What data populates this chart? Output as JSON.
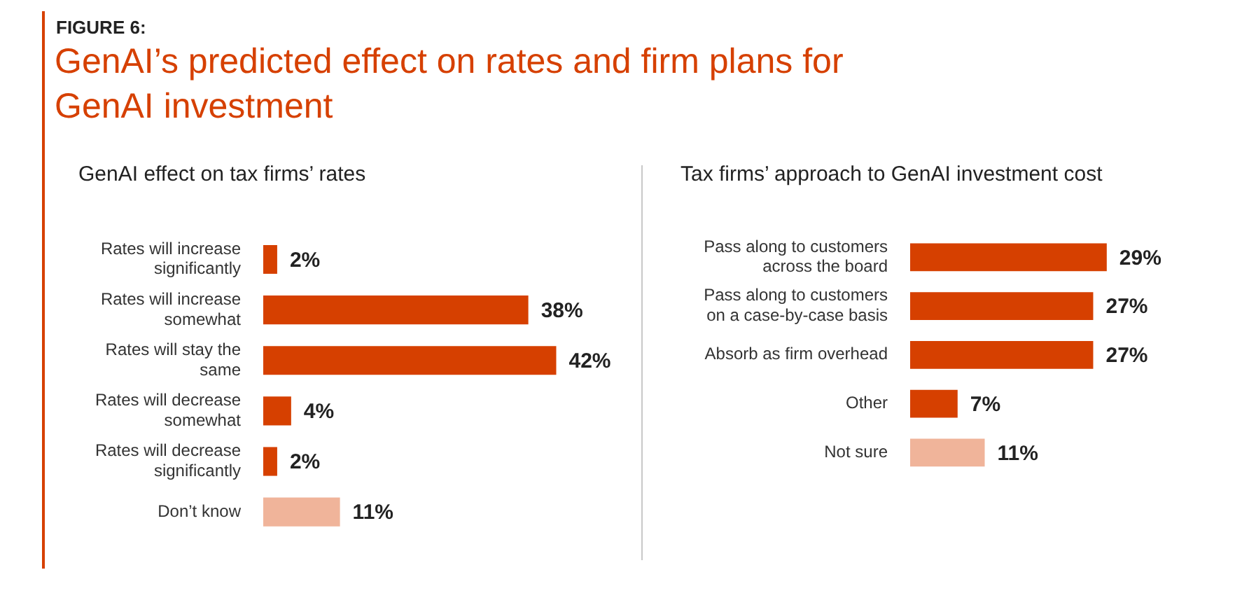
{
  "chart_data": [
    {
      "type": "bar",
      "orientation": "horizontal",
      "title": "GenAI effect on tax firms’ rates",
      "annotations": [
        "FIGURE 6:",
        "GenAI’s predicted effect on rates and firm plans for GenAI investment"
      ],
      "categories": [
        "Rates will increase significantly",
        "Rates will increase somewhat",
        "Rates will stay the same",
        "Rates will decrease somewhat",
        "Rates will decrease significantly",
        "Don’t know"
      ],
      "values": [
        2,
        38,
        42,
        4,
        2,
        11
      ],
      "value_labels": [
        "2%",
        "38%",
        "42%",
        "4%",
        "2%",
        "11%"
      ],
      "colors": [
        "#d64000",
        "#d64000",
        "#d64000",
        "#d64000",
        "#d64000",
        "#f0b49a"
      ],
      "tick_labels": "y",
      "grid": false,
      "legend": false
    },
    {
      "type": "bar",
      "orientation": "horizontal",
      "title": "Tax firms’ approach to GenAI investment cost",
      "categories": [
        "Pass along to customers across the board",
        "Pass along to customers on a case-by-case basis",
        "Absorb as firm overhead",
        "Other",
        "Not sure"
      ],
      "values": [
        29,
        27,
        27,
        7,
        11
      ],
      "value_labels": [
        "29%",
        "27%",
        "27%",
        "7%",
        "11%"
      ],
      "colors": [
        "#d64000",
        "#d64000",
        "#d64000",
        "#d64000",
        "#f0b49a"
      ],
      "tick_labels": "y",
      "grid": false,
      "legend": false
    }
  ]
}
